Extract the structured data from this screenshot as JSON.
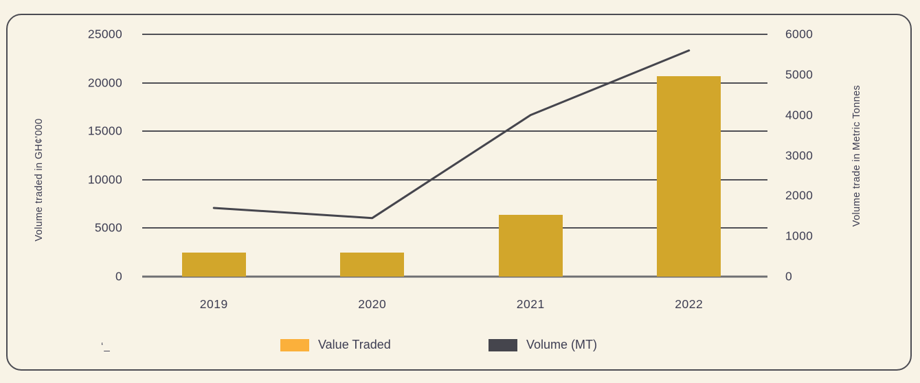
{
  "chart_data": {
    "type": "bar",
    "title": "",
    "categories": [
      "2019",
      "2020",
      "2021",
      "2022"
    ],
    "series": [
      {
        "name": "Value Traded",
        "type": "bar",
        "axis": "left",
        "color": "#d2a62b",
        "values": [
          2500,
          2500,
          6400,
          20700
        ]
      },
      {
        "name": "Volume (MT)",
        "type": "line",
        "axis": "right",
        "color": "#45454d",
        "values": [
          1700,
          1450,
          4000,
          5600
        ]
      }
    ],
    "left_axis": {
      "label": "Volume traded in GH¢'000",
      "min": 0,
      "max": 25000,
      "ticks": [
        0,
        5000,
        10000,
        15000,
        20000,
        25000
      ]
    },
    "right_axis": {
      "label": "Volume trade in Metric Tonnes",
      "min": 0,
      "max": 6000,
      "ticks": [
        0,
        1000,
        2000,
        3000,
        4000,
        5000,
        6000
      ]
    },
    "grid": true,
    "legend_position": "bottom"
  },
  "legend": {
    "items": [
      {
        "label": "Value Traded",
        "color": "#fbb03b"
      },
      {
        "label": "Volume (MT)",
        "color": "#45454d"
      }
    ]
  },
  "stray_mark": "‘_",
  "colors": {
    "background": "#f8f3e6",
    "panel_border": "#4b4b52",
    "gridline": "#4f4f55",
    "baseline": "#6f6f73",
    "text": "#3d3d52",
    "bar": "#d2a62b",
    "line": "#45454d",
    "legend_value_swatch": "#fbb03b"
  }
}
